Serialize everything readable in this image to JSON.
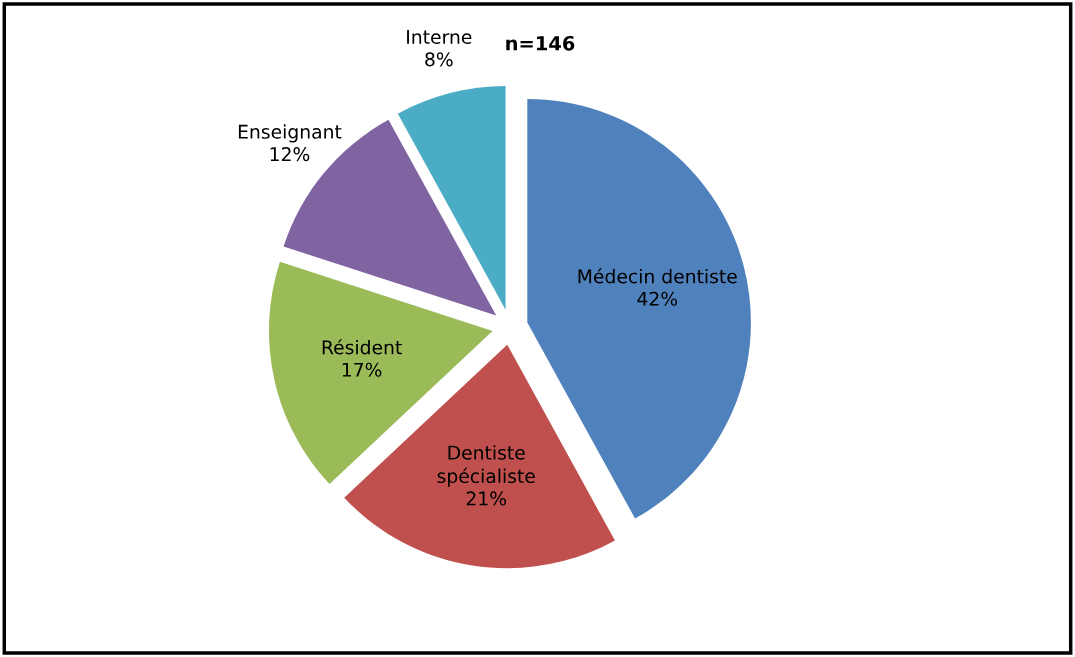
{
  "chart_data": {
    "type": "pie",
    "categories": [
      "Médecin dentiste",
      "Dentiste spécialiste",
      "Résident",
      "Enseignant",
      "Interne"
    ],
    "values": [
      42,
      21,
      17,
      12,
      8
    ],
    "value_labels": [
      "42%",
      "21%",
      "17%",
      "12%",
      "8%"
    ],
    "colors": [
      "#4f81bd",
      "#c0504d",
      "#9bbb59",
      "#8064a2",
      "#4bacc6"
    ],
    "annotations": [
      "n=146"
    ],
    "legend": false
  }
}
